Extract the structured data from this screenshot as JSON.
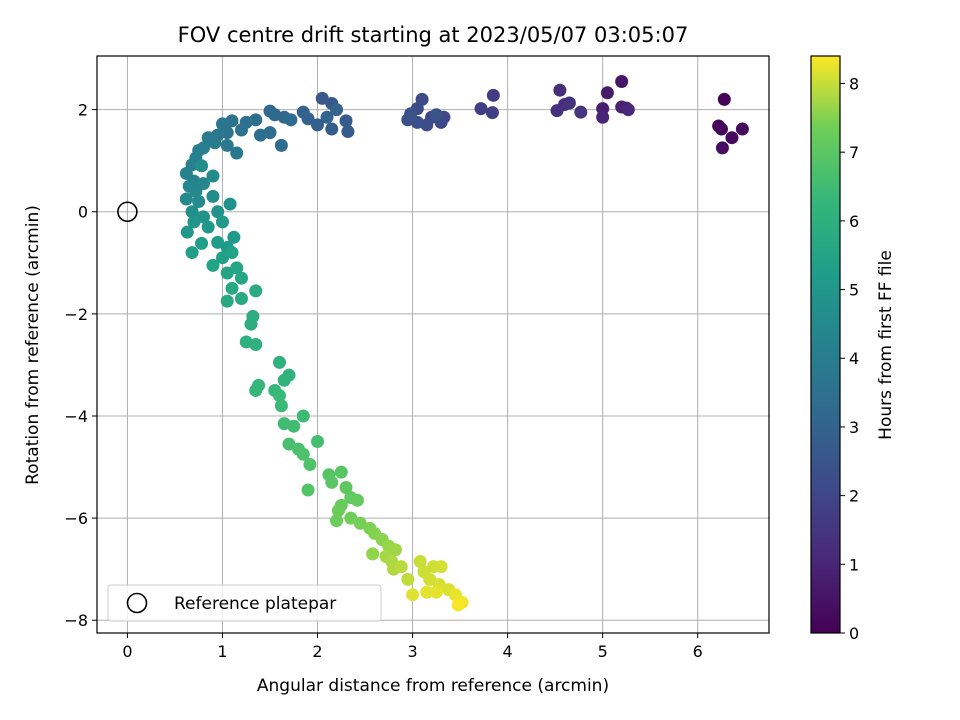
{
  "chart_data": {
    "type": "scatter",
    "title": "FOV centre drift starting at 2023/05/07 03:05:07",
    "xlabel": "Angular distance from reference (arcmin)",
    "ylabel": "Rotation from reference (arcmin)",
    "xlim": [
      -0.32,
      6.75
    ],
    "ylim": [
      -8.25,
      3.05
    ],
    "xticks": [
      0,
      1,
      2,
      3,
      4,
      5,
      6
    ],
    "yticks": [
      -8,
      -6,
      -4,
      -2,
      0,
      2
    ],
    "xtick_labels": [
      "0",
      "1",
      "2",
      "3",
      "4",
      "5",
      "6"
    ],
    "ytick_labels": [
      "−8",
      "−6",
      "−4",
      "−2",
      "0",
      "2"
    ],
    "grid": true,
    "legend": {
      "placement": "lower-left",
      "entries": [
        "Reference platepar"
      ]
    },
    "reference_point": {
      "x": 0,
      "y": 0,
      "label": "Reference platepar"
    },
    "colorbar": {
      "label": "Hours from first FF file",
      "range": [
        0,
        8.4
      ],
      "ticks": [
        0,
        1,
        2,
        3,
        4,
        5,
        6,
        7,
        8
      ],
      "tick_labels": [
        "0",
        "1",
        "2",
        "3",
        "4",
        "5",
        "6",
        "7",
        "8"
      ],
      "colormap": "viridis"
    },
    "points": [
      {
        "x": 6.28,
        "y": 2.2,
        "c": 0.1
      },
      {
        "x": 6.22,
        "y": 1.68,
        "c": 0.15
      },
      {
        "x": 6.25,
        "y": 1.62,
        "c": 0.2
      },
      {
        "x": 6.36,
        "y": 1.45,
        "c": 0.25
      },
      {
        "x": 6.47,
        "y": 1.62,
        "c": 0.3
      },
      {
        "x": 6.26,
        "y": 1.25,
        "c": 0.35
      },
      {
        "x": 5.2,
        "y": 2.55,
        "c": 0.6
      },
      {
        "x": 5.05,
        "y": 2.33,
        "c": 0.7
      },
      {
        "x": 5.0,
        "y": 2.02,
        "c": 0.8
      },
      {
        "x": 5.25,
        "y": 2.03,
        "c": 0.85
      },
      {
        "x": 5.2,
        "y": 2.05,
        "c": 0.9
      },
      {
        "x": 5.0,
        "y": 1.85,
        "c": 1.0
      },
      {
        "x": 5.27,
        "y": 2.0,
        "c": 1.05
      },
      {
        "x": 4.6,
        "y": 2.1,
        "c": 1.2
      },
      {
        "x": 4.55,
        "y": 2.38,
        "c": 1.3
      },
      {
        "x": 4.52,
        "y": 1.98,
        "c": 1.35
      },
      {
        "x": 4.65,
        "y": 2.13,
        "c": 1.4
      },
      {
        "x": 4.77,
        "y": 1.95,
        "c": 1.45
      },
      {
        "x": 3.85,
        "y": 2.28,
        "c": 1.7
      },
      {
        "x": 3.72,
        "y": 2.02,
        "c": 1.75
      },
      {
        "x": 3.84,
        "y": 1.94,
        "c": 1.8
      },
      {
        "x": 3.2,
        "y": 1.85,
        "c": 2.0
      },
      {
        "x": 3.3,
        "y": 1.75,
        "c": 2.05
      },
      {
        "x": 3.33,
        "y": 1.85,
        "c": 2.1
      },
      {
        "x": 3.1,
        "y": 2.2,
        "c": 2.15
      },
      {
        "x": 3.05,
        "y": 2.02,
        "c": 2.2
      },
      {
        "x": 3.15,
        "y": 1.7,
        "c": 2.25
      },
      {
        "x": 2.95,
        "y": 1.8,
        "c": 2.3
      },
      {
        "x": 3.05,
        "y": 1.75,
        "c": 2.35
      },
      {
        "x": 2.98,
        "y": 1.92,
        "c": 2.4
      },
      {
        "x": 3.25,
        "y": 1.9,
        "c": 2.45
      },
      {
        "x": 2.05,
        "y": 2.22,
        "c": 2.6
      },
      {
        "x": 2.15,
        "y": 2.12,
        "c": 2.65
      },
      {
        "x": 2.3,
        "y": 1.78,
        "c": 2.7
      },
      {
        "x": 2.32,
        "y": 1.57,
        "c": 2.75
      },
      {
        "x": 2.15,
        "y": 1.62,
        "c": 2.8
      },
      {
        "x": 2.0,
        "y": 1.7,
        "c": 2.85
      },
      {
        "x": 1.9,
        "y": 1.82,
        "c": 2.9
      },
      {
        "x": 1.85,
        "y": 1.95,
        "c": 2.95
      },
      {
        "x": 2.2,
        "y": 2.0,
        "c": 3.0
      },
      {
        "x": 2.1,
        "y": 1.85,
        "c": 3.05
      },
      {
        "x": 1.65,
        "y": 1.85,
        "c": 3.1
      },
      {
        "x": 1.55,
        "y": 1.9,
        "c": 3.15
      },
      {
        "x": 1.5,
        "y": 1.97,
        "c": 3.2
      },
      {
        "x": 1.72,
        "y": 1.8,
        "c": 3.25
      },
      {
        "x": 1.62,
        "y": 1.3,
        "c": 3.3
      },
      {
        "x": 1.5,
        "y": 1.55,
        "c": 3.35
      },
      {
        "x": 1.4,
        "y": 1.5,
        "c": 3.4
      },
      {
        "x": 1.35,
        "y": 1.8,
        "c": 3.45
      },
      {
        "x": 1.25,
        "y": 1.75,
        "c": 3.5
      },
      {
        "x": 1.2,
        "y": 1.6,
        "c": 3.55
      },
      {
        "x": 1.1,
        "y": 1.78,
        "c": 3.6
      },
      {
        "x": 1.05,
        "y": 1.55,
        "c": 3.65
      },
      {
        "x": 1.0,
        "y": 1.72,
        "c": 3.7
      },
      {
        "x": 0.95,
        "y": 1.5,
        "c": 3.75
      },
      {
        "x": 1.15,
        "y": 1.15,
        "c": 3.8
      },
      {
        "x": 1.05,
        "y": 1.3,
        "c": 3.85
      },
      {
        "x": 0.92,
        "y": 1.35,
        "c": 3.9
      },
      {
        "x": 0.85,
        "y": 1.45,
        "c": 3.95
      },
      {
        "x": 0.8,
        "y": 1.25,
        "c": 4.0
      },
      {
        "x": 0.75,
        "y": 1.2,
        "c": 4.05
      },
      {
        "x": 0.72,
        "y": 1.05,
        "c": 4.1
      },
      {
        "x": 0.68,
        "y": 0.92,
        "c": 4.15
      },
      {
        "x": 0.62,
        "y": 0.75,
        "c": 4.2
      },
      {
        "x": 0.7,
        "y": 0.6,
        "c": 4.25
      },
      {
        "x": 0.65,
        "y": 0.5,
        "c": 4.3
      },
      {
        "x": 0.8,
        "y": 0.55,
        "c": 4.35
      },
      {
        "x": 0.72,
        "y": 0.4,
        "c": 4.4
      },
      {
        "x": 0.62,
        "y": 0.25,
        "c": 4.45
      },
      {
        "x": 0.75,
        "y": 0.2,
        "c": 4.5
      },
      {
        "x": 0.9,
        "y": 0.7,
        "c": 4.55
      },
      {
        "x": 0.9,
        "y": 0.3,
        "c": 4.6
      },
      {
        "x": 0.78,
        "y": 0.9,
        "c": 4.65
      },
      {
        "x": 0.68,
        "y": 0.0,
        "c": 4.7
      },
      {
        "x": 1.08,
        "y": 0.15,
        "c": 4.75
      },
      {
        "x": 0.95,
        "y": 0.0,
        "c": 4.8
      },
      {
        "x": 0.8,
        "y": -0.1,
        "c": 4.85
      },
      {
        "x": 0.7,
        "y": -0.2,
        "c": 4.9
      },
      {
        "x": 0.63,
        "y": -0.4,
        "c": 4.95
      },
      {
        "x": 0.85,
        "y": -0.3,
        "c": 5.0
      },
      {
        "x": 1.0,
        "y": -0.2,
        "c": 5.05
      },
      {
        "x": 1.12,
        "y": -0.5,
        "c": 5.1
      },
      {
        "x": 1.05,
        "y": -0.7,
        "c": 5.15
      },
      {
        "x": 0.95,
        "y": -0.6,
        "c": 5.2
      },
      {
        "x": 0.78,
        "y": -0.62,
        "c": 5.25
      },
      {
        "x": 0.68,
        "y": -0.8,
        "c": 5.3
      },
      {
        "x": 1.0,
        "y": -0.9,
        "c": 5.35
      },
      {
        "x": 1.1,
        "y": -0.8,
        "c": 5.4
      },
      {
        "x": 0.9,
        "y": -1.05,
        "c": 5.45
      },
      {
        "x": 1.05,
        "y": -1.2,
        "c": 5.5
      },
      {
        "x": 1.15,
        "y": -1.1,
        "c": 5.55
      },
      {
        "x": 1.2,
        "y": -1.3,
        "c": 5.6
      },
      {
        "x": 1.1,
        "y": -1.5,
        "c": 5.65
      },
      {
        "x": 1.2,
        "y": -1.7,
        "c": 5.7
      },
      {
        "x": 1.05,
        "y": -1.75,
        "c": 5.75
      },
      {
        "x": 1.35,
        "y": -1.55,
        "c": 5.8
      },
      {
        "x": 1.32,
        "y": -2.05,
        "c": 5.85
      },
      {
        "x": 1.3,
        "y": -2.2,
        "c": 5.9
      },
      {
        "x": 1.25,
        "y": -2.55,
        "c": 5.95
      },
      {
        "x": 1.35,
        "y": -2.6,
        "c": 6.0
      },
      {
        "x": 1.6,
        "y": -2.95,
        "c": 6.05
      },
      {
        "x": 1.7,
        "y": -3.2,
        "c": 6.1
      },
      {
        "x": 1.65,
        "y": -3.3,
        "c": 6.15
      },
      {
        "x": 1.38,
        "y": -3.4,
        "c": 6.2
      },
      {
        "x": 1.35,
        "y": -3.5,
        "c": 6.25
      },
      {
        "x": 1.55,
        "y": -3.5,
        "c": 6.3
      },
      {
        "x": 1.6,
        "y": -3.6,
        "c": 6.35
      },
      {
        "x": 1.62,
        "y": -3.8,
        "c": 6.4
      },
      {
        "x": 1.85,
        "y": -4.0,
        "c": 6.45
      },
      {
        "x": 1.65,
        "y": -4.15,
        "c": 6.5
      },
      {
        "x": 1.75,
        "y": -4.2,
        "c": 6.55
      },
      {
        "x": 2.0,
        "y": -4.5,
        "c": 6.6
      },
      {
        "x": 1.7,
        "y": -4.55,
        "c": 6.65
      },
      {
        "x": 1.8,
        "y": -4.65,
        "c": 6.7
      },
      {
        "x": 1.85,
        "y": -4.75,
        "c": 6.75
      },
      {
        "x": 1.92,
        "y": -4.95,
        "c": 6.8
      },
      {
        "x": 1.9,
        "y": -5.45,
        "c": 6.85
      },
      {
        "x": 2.12,
        "y": -5.15,
        "c": 6.9
      },
      {
        "x": 2.25,
        "y": -5.1,
        "c": 6.95
      },
      {
        "x": 2.15,
        "y": -5.3,
        "c": 7.0
      },
      {
        "x": 2.3,
        "y": -5.4,
        "c": 7.05
      },
      {
        "x": 2.35,
        "y": -5.6,
        "c": 7.1
      },
      {
        "x": 2.42,
        "y": -5.65,
        "c": 7.15
      },
      {
        "x": 2.25,
        "y": -5.75,
        "c": 7.2
      },
      {
        "x": 2.22,
        "y": -5.85,
        "c": 7.25
      },
      {
        "x": 2.2,
        "y": -6.05,
        "c": 7.3
      },
      {
        "x": 2.35,
        "y": -6.0,
        "c": 7.35
      },
      {
        "x": 2.45,
        "y": -6.1,
        "c": 7.4
      },
      {
        "x": 2.55,
        "y": -6.2,
        "c": 7.45
      },
      {
        "x": 2.6,
        "y": -6.3,
        "c": 7.5
      },
      {
        "x": 2.68,
        "y": -6.42,
        "c": 7.55
      },
      {
        "x": 2.58,
        "y": -6.7,
        "c": 7.6
      },
      {
        "x": 2.75,
        "y": -6.55,
        "c": 7.65
      },
      {
        "x": 2.82,
        "y": -6.62,
        "c": 7.7
      },
      {
        "x": 2.72,
        "y": -6.75,
        "c": 7.75
      },
      {
        "x": 2.78,
        "y": -6.85,
        "c": 7.8
      },
      {
        "x": 2.8,
        "y": -7.0,
        "c": 7.85
      },
      {
        "x": 2.88,
        "y": -6.95,
        "c": 7.9
      },
      {
        "x": 2.95,
        "y": -7.2,
        "c": 7.95
      },
      {
        "x": 3.08,
        "y": -6.85,
        "c": 8.0
      },
      {
        "x": 3.12,
        "y": -7.05,
        "c": 8.02
      },
      {
        "x": 3.22,
        "y": -6.95,
        "c": 8.05
      },
      {
        "x": 3.18,
        "y": -7.2,
        "c": 8.08
      },
      {
        "x": 3.3,
        "y": -6.95,
        "c": 8.1
      },
      {
        "x": 3.28,
        "y": -7.3,
        "c": 8.12
      },
      {
        "x": 3.38,
        "y": -7.4,
        "c": 8.15
      },
      {
        "x": 3.0,
        "y": -7.5,
        "c": 8.18
      },
      {
        "x": 3.15,
        "y": -7.45,
        "c": 8.2
      },
      {
        "x": 3.25,
        "y": -7.45,
        "c": 8.22
      },
      {
        "x": 3.45,
        "y": -7.5,
        "c": 8.25
      },
      {
        "x": 3.52,
        "y": -7.65,
        "c": 8.3
      },
      {
        "x": 3.48,
        "y": -7.7,
        "c": 8.35
      }
    ]
  }
}
